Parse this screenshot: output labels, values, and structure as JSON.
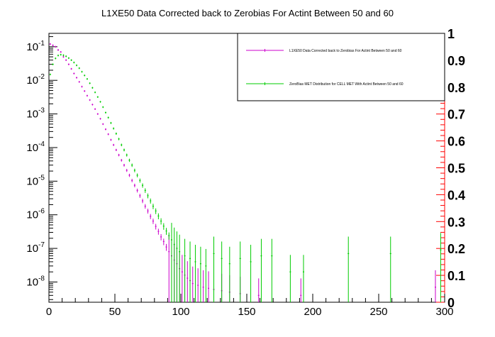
{
  "chart_data": {
    "type": "scatter",
    "title": "L1XE50 Data Corrected back to Zerobias For Actint Between 50 and 60",
    "xlabel": "",
    "ylabel": "",
    "xlim": [
      0,
      300
    ],
    "ylim": [
      2.5e-09,
      0.25
    ],
    "yscale": "log",
    "right_ylim": [
      0,
      1
    ],
    "grid": false,
    "legend_position": "top-right",
    "x_ticks": [
      "0",
      "50",
      "100",
      "150",
      "200",
      "250",
      "300"
    ],
    "y_ticks": [
      {
        "mant": "10",
        "exp": "-1",
        "value": 0.1
      },
      {
        "mant": "10",
        "exp": "-2",
        "value": 0.01
      },
      {
        "mant": "10",
        "exp": "-3",
        "value": 0.001
      },
      {
        "mant": "10",
        "exp": "-4",
        "value": 0.0001
      },
      {
        "mant": "10",
        "exp": "-5",
        "value": 1e-05
      },
      {
        "mant": "10",
        "exp": "-6",
        "value": 1e-06
      },
      {
        "mant": "10",
        "exp": "-7",
        "value": 1e-07
      },
      {
        "mant": "10",
        "exp": "-8",
        "value": 1e-08
      }
    ],
    "right_ticks": [
      "0",
      "0.1",
      "0.2",
      "0.3",
      "0.4",
      "0.5",
      "0.6",
      "0.7",
      "0.8",
      "0.9",
      "1"
    ],
    "series": [
      {
        "name": "L1XE50 Data Corrected back to Zerobias For Actint Between 50 and 60",
        "color": "#cc00cc",
        "x": [
          1,
          3,
          5,
          7,
          9,
          11,
          13,
          15,
          17,
          19,
          21,
          23,
          25,
          27,
          29,
          31,
          33,
          35,
          37,
          39,
          41,
          43,
          45,
          47,
          49,
          51,
          53,
          55,
          57,
          59,
          61,
          63,
          65,
          67,
          69,
          71,
          73,
          75,
          77,
          79,
          81,
          83,
          85,
          87,
          89,
          91,
          93,
          95,
          97,
          99,
          101,
          103,
          105,
          107,
          109,
          113,
          117,
          121,
          125,
          131,
          137,
          145,
          159,
          191,
          293
        ],
        "y": [
          0.12,
          0.11,
          0.1,
          0.08,
          0.07,
          0.05,
          0.04,
          0.03,
          0.022,
          0.016,
          0.012,
          0.009,
          0.0065,
          0.0048,
          0.0035,
          0.0026,
          0.0019,
          0.0014,
          0.001,
          0.00072,
          0.0005,
          0.00035,
          0.00025,
          0.00017,
          0.00012,
          8.5e-05,
          6e-05,
          4.2e-05,
          3e-05,
          2.1e-05,
          1.5e-05,
          1.05e-05,
          7.5e-06,
          5.3e-06,
          3.7e-06,
          2.6e-06,
          1.8e-06,
          1.3e-06,
          9e-07,
          6.5e-07,
          4.5e-07,
          3.2e-07,
          2.2e-07,
          1.6e-07,
          1.1e-07,
          8e-08,
          6e-08,
          4.5e-08,
          3.5e-08,
          2.5e-08,
          2e-08,
          1.6e-08,
          1.3e-08,
          1.1e-08,
          9e-09,
          8e-09,
          7e-09,
          6.5e-09,
          6e-09,
          5.5e-09,
          5e-09,
          4.5e-09,
          4e-09,
          4e-09,
          7e-09
        ]
      },
      {
        "name": "ZeroBias MET Distribution for CELL MET With Actint Between 50 and 60",
        "color": "#00cc00",
        "x": [
          1,
          3,
          5,
          7,
          9,
          11,
          13,
          15,
          17,
          19,
          21,
          23,
          25,
          27,
          29,
          31,
          33,
          35,
          37,
          39,
          41,
          43,
          45,
          47,
          49,
          51,
          53,
          55,
          57,
          59,
          61,
          63,
          65,
          67,
          69,
          71,
          73,
          75,
          77,
          79,
          81,
          83,
          85,
          87,
          89,
          91,
          93,
          95,
          97,
          99,
          103,
          107,
          111,
          115,
          119,
          125,
          131,
          137,
          145,
          153,
          161,
          169,
          183,
          193,
          227,
          259,
          297
        ],
        "y": [
          0.015,
          0.03,
          0.045,
          0.055,
          0.058,
          0.056,
          0.052,
          0.046,
          0.04,
          0.034,
          0.028,
          0.023,
          0.018,
          0.014,
          0.011,
          0.0082,
          0.006,
          0.0044,
          0.0032,
          0.0023,
          0.0016,
          0.0011,
          0.00078,
          0.00054,
          0.00037,
          0.00026,
          0.00018,
          0.00012,
          8.5e-05,
          6e-05,
          4.2e-05,
          3e-05,
          2.1e-05,
          1.5e-05,
          1.05e-05,
          7.5e-06,
          5.3e-06,
          3.7e-06,
          2.6e-06,
          1.8e-06,
          1.3e-06,
          9.2e-07,
          6.5e-07,
          4.6e-07,
          3.3e-07,
          2.4e-07,
          1.8e-07,
          1.3e-07,
          1e-07,
          8e-08,
          6e-08,
          5e-08,
          4e-08,
          3.5e-08,
          3e-08,
          7e-08,
          5e-08,
          3.5e-08,
          5e-08,
          4e-08,
          6e-08,
          6e-08,
          2e-08,
          2e-08,
          7e-08,
          7e-08,
          9e-08
        ]
      }
    ]
  }
}
